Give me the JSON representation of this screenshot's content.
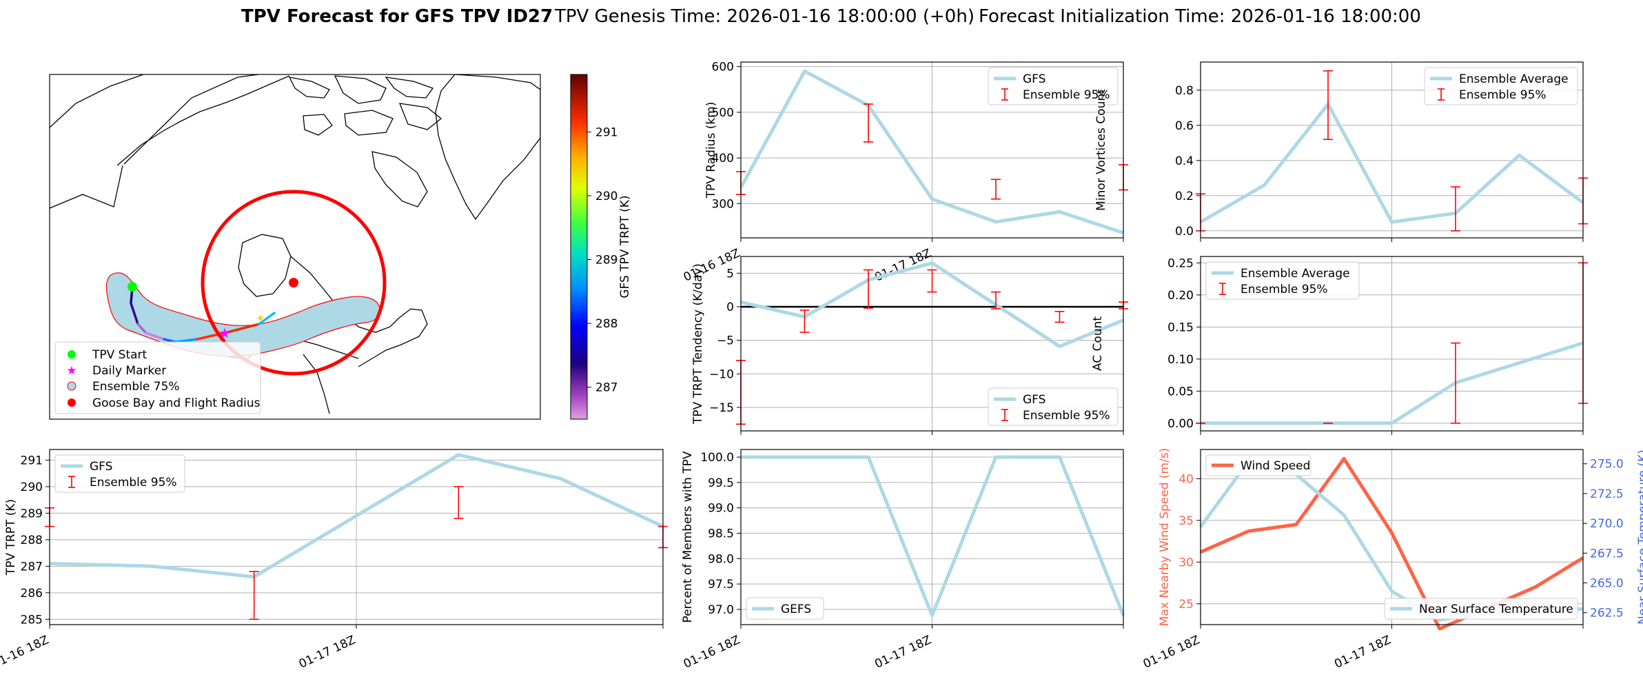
{
  "figure": {
    "title_bold": "TPV Forecast for GFS TPV ID27",
    "title_genesis": "TPV Genesis Time: 2026-01-16 18:00:00 (+0h)",
    "title_init": "Forecast Initialization Time: 2026-01-16 18:00:00"
  },
  "colors": {
    "model": "#add8e6",
    "error": "#ff0000",
    "wind": "#ff6347",
    "temp_axis": "#4169e1",
    "zero_line": "#000000",
    "grid": "#b0b0b0"
  },
  "map": {
    "colorbar_label": "GFS TPV TRPT (K)",
    "colorbar_ticks": [
      287,
      288,
      289,
      290,
      291
    ],
    "colorbar_range": [
      286.5,
      291.9
    ],
    "legend": [
      "TPV Start",
      "Daily Marker",
      "Ensemble 75%",
      "Goose Bay and Flight Radius"
    ]
  },
  "chart_data": [
    {
      "id": "radius",
      "type": "line",
      "ylabel": "TPV Radius (km)",
      "ylim": [
        225,
        610
      ],
      "yticks": [
        300,
        400,
        500,
        600
      ],
      "xticks": [
        "01-16 18Z",
        "01-17 18Z"
      ],
      "xlim": [
        0,
        6
      ],
      "series": [
        {
          "name": "GFS",
          "x": [
            0,
            1,
            2,
            3,
            4,
            5,
            6
          ],
          "values": [
            335,
            590,
            515,
            310,
            260,
            282,
            236
          ]
        }
      ],
      "errorbars": {
        "name": "Ensemble 95%",
        "x": [
          0,
          2,
          4,
          6
        ],
        "low": [
          320,
          435,
          310,
          330
        ],
        "high": [
          370,
          518,
          353,
          385
        ]
      },
      "legend": [
        "GFS",
        "Ensemble 95%"
      ]
    },
    {
      "id": "minor",
      "type": "line",
      "ylabel": "Minor Vortices Count",
      "ylim": [
        -0.04,
        0.96
      ],
      "yticks": [
        0.0,
        0.2,
        0.4,
        0.6,
        0.8
      ],
      "xticks": [],
      "xlim": [
        0,
        6
      ],
      "series": [
        {
          "name": "Ensemble Average",
          "x": [
            0,
            1,
            2,
            3,
            4,
            5,
            6
          ],
          "values": [
            0.05,
            0.26,
            0.72,
            0.05,
            0.1,
            0.43,
            0.16
          ]
        }
      ],
      "errorbars": {
        "name": "Ensemble 95%",
        "x": [
          0,
          2,
          4,
          6
        ],
        "low": [
          0.0,
          0.52,
          0.0,
          0.04
        ],
        "high": [
          0.21,
          0.91,
          0.25,
          0.3
        ]
      },
      "legend": [
        "Ensemble Average",
        "Ensemble 95%"
      ]
    },
    {
      "id": "tendency",
      "type": "line",
      "ylabel": "TPV TRPT Tendency (K/day)",
      "ylim": [
        -18.5,
        7.5
      ],
      "yticks": [
        5,
        0,
        -5,
        -10,
        -15
      ],
      "xticks": [],
      "xlim": [
        0,
        6
      ],
      "zero_line": 0,
      "series": [
        {
          "name": "GFS",
          "x": [
            0,
            1,
            2,
            3,
            4,
            5,
            6
          ],
          "values": [
            0.7,
            -1.5,
            4.0,
            6.5,
            0.3,
            -5.9,
            -2.0
          ]
        }
      ],
      "errorbars": {
        "name": "Ensemble 95%",
        "x": [
          0,
          1,
          2,
          3,
          4,
          5,
          6
        ],
        "low": [
          -17.5,
          -3.8,
          -0.2,
          2.2,
          -0.3,
          -2.3,
          -0.3
        ],
        "high": [
          -8.0,
          -0.5,
          5.5,
          5.5,
          2.2,
          -0.7,
          0.7
        ]
      },
      "legend": [
        "GFS",
        "Ensemble 95%"
      ]
    },
    {
      "id": "ac",
      "type": "line",
      "ylabel": "AC Count",
      "ylim": [
        -0.012,
        0.26
      ],
      "yticks": [
        0.0,
        0.05,
        0.1,
        0.15,
        0.2,
        0.25
      ],
      "xticks": [],
      "xlim": [
        0,
        6
      ],
      "series": [
        {
          "name": "Ensemble Average",
          "x": [
            0,
            1,
            2,
            3,
            4,
            5,
            6
          ],
          "values": [
            0,
            0,
            0,
            0,
            0.063,
            0.094,
            0.125
          ]
        }
      ],
      "errorbars": {
        "name": "Ensemble 95%",
        "x": [
          0,
          2,
          4,
          6
        ],
        "low": [
          0,
          0,
          0,
          0.031
        ],
        "high": [
          0,
          0,
          0.125,
          0.25
        ]
      },
      "legend": [
        "Ensemble Average",
        "Ensemble 95%"
      ]
    },
    {
      "id": "trpt",
      "type": "line",
      "ylabel": "TPV TRPT (K)",
      "ylim": [
        284.8,
        291.4
      ],
      "yticks": [
        285,
        286,
        287,
        288,
        289,
        290,
        291
      ],
      "xticks": [
        "01-16 18Z",
        "01-17 18Z"
      ],
      "xlim": [
        0,
        6
      ],
      "series": [
        {
          "name": "GFS",
          "x": [
            0,
            1,
            2,
            3,
            4,
            5,
            6
          ],
          "values": [
            287.1,
            287.0,
            286.6,
            288.9,
            291.2,
            290.3,
            288.5
          ]
        }
      ],
      "errorbars": {
        "name": "Ensemble 95%",
        "x": [
          0,
          2,
          4,
          6
        ],
        "low": [
          288.5,
          285.0,
          288.8,
          287.7
        ],
        "high": [
          289.2,
          286.8,
          290.0,
          288.5
        ]
      },
      "legend": [
        "GFS",
        "Ensemble 95%"
      ]
    },
    {
      "id": "members",
      "type": "line",
      "ylabel": "Percent of Members with TPV",
      "ylim": [
        96.7,
        100.15
      ],
      "yticks": [
        97.0,
        97.5,
        98.0,
        98.5,
        99.0,
        99.5,
        100.0
      ],
      "xticks": [
        "01-16 18Z",
        "01-17 18Z"
      ],
      "xlim": [
        0,
        6
      ],
      "series": [
        {
          "name": "GEFS",
          "x": [
            0,
            1,
            2,
            3,
            4,
            5,
            6
          ],
          "values": [
            100,
            100,
            100,
            96.88,
            100,
            100,
            96.88
          ]
        }
      ],
      "legend": [
        "GEFS"
      ]
    },
    {
      "id": "wind_temp",
      "type": "line",
      "ylabel": "Max Nearby Wind Speed (m/s)",
      "ylim": [
        22.5,
        43.5
      ],
      "yticks": [
        25,
        30,
        35,
        40
      ],
      "xticks": [
        "01-16 18Z",
        "01-17 18Z"
      ],
      "xlim": [
        0,
        8
      ],
      "series": [
        {
          "name": "Wind Speed",
          "x": [
            0,
            1,
            2,
            3,
            4,
            5,
            6,
            7,
            8
          ],
          "values": [
            31.2,
            33.7,
            34.5,
            42.4,
            33.5,
            22.0,
            24.5,
            27.0,
            30.5
          ]
        }
      ],
      "ylabel_right": "Near Surface Temperature (K)",
      "ylim_right": [
        261.5,
        276.2
      ],
      "yticks_right": [
        262.5,
        265.0,
        267.5,
        270.0,
        272.5,
        275.0
      ],
      "series_right": [
        {
          "name": "Near Surface Temperature",
          "x": [
            0,
            1,
            2,
            3,
            4,
            5,
            6,
            7,
            8
          ],
          "values": [
            269.7,
            275.2,
            274.1,
            270.7,
            264.3,
            261.9,
            262.5,
            262.7,
            262.8
          ]
        }
      ],
      "legend": [
        "Wind Speed"
      ],
      "legend_right": [
        "Near Surface Temperature"
      ]
    }
  ]
}
